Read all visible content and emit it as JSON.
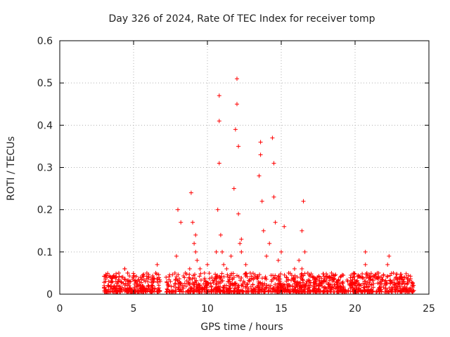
{
  "chart_data": {
    "type": "scatter",
    "title": "Day 326 of 2024, Rate Of TEC Index for receiver tomp",
    "xlabel": "GPS time / hours",
    "ylabel": "ROTI / TECUs",
    "xlim": [
      0,
      25
    ],
    "ylim": [
      0,
      0.6
    ],
    "xticks": [
      "0",
      "5",
      "10",
      "15",
      "20",
      "25"
    ],
    "yticks": [
      "0",
      "0.1",
      "0.2",
      "0.3",
      "0.4",
      "0.5",
      "0.6"
    ],
    "xtick_values": [
      0,
      5,
      10,
      15,
      20,
      25
    ],
    "ytick_values": [
      0,
      0.1,
      0.2,
      0.3,
      0.4,
      0.5,
      0.6
    ],
    "grid": true,
    "marker": "plus",
    "color": "#ff0000",
    "series": [
      {
        "x": [
          3.1,
          3.3,
          3.6,
          3.8,
          4.0,
          4.2,
          4.4,
          4.6,
          4.8,
          5.0,
          5.2,
          5.4,
          5.6,
          5.8,
          6.0,
          6.2,
          6.5,
          6.8,
          7.2,
          7.5,
          7.8,
          7.9,
          8.0,
          8.2,
          8.5,
          8.8,
          8.9,
          9.0,
          9.1,
          9.2,
          9.3,
          9.5,
          9.8,
          10.0,
          10.3,
          10.6,
          10.7,
          10.8,
          10.8,
          10.8,
          10.9,
          11.0,
          11.1,
          11.3,
          11.6,
          11.8,
          11.9,
          12.0,
          12.0,
          12.1,
          12.1,
          12.2,
          12.3,
          12.6,
          12.9,
          13.2,
          13.5,
          13.6,
          13.6,
          13.7,
          13.8,
          14.0,
          14.2,
          14.4,
          14.5,
          14.5,
          14.6,
          14.8,
          15.0,
          15.2,
          15.5,
          15.9,
          16.2,
          16.4,
          16.5,
          16.6,
          16.8,
          17.2,
          17.6,
          18.0,
          18.5,
          19.0,
          19.5,
          19.9,
          20.4,
          20.7,
          20.8,
          21.0,
          21.5,
          21.8,
          22.0,
          22.2,
          22.3,
          22.6,
          23.0,
          23.3,
          23.6,
          23.9,
          4.4,
          4.6,
          5.9,
          6.3,
          6.6,
          9.2,
          12.3,
          16.4,
          20.7,
          21.6
        ],
        "y": [
          0.03,
          0.02,
          0.04,
          0.03,
          0.05,
          0.04,
          0.06,
          0.05,
          0.03,
          0.04,
          0.02,
          0.03,
          0.02,
          0.03,
          0.02,
          0.02,
          0.05,
          0.03,
          0.04,
          0.03,
          0.05,
          0.09,
          0.2,
          0.17,
          0.05,
          0.06,
          0.24,
          0.17,
          0.12,
          0.1,
          0.08,
          0.06,
          0.05,
          0.07,
          0.04,
          0.1,
          0.2,
          0.31,
          0.41,
          0.47,
          0.14,
          0.1,
          0.07,
          0.06,
          0.09,
          0.25,
          0.39,
          0.51,
          0.45,
          0.35,
          0.19,
          0.12,
          0.1,
          0.07,
          0.05,
          0.04,
          0.28,
          0.36,
          0.33,
          0.22,
          0.15,
          0.09,
          0.12,
          0.37,
          0.31,
          0.23,
          0.17,
          0.08,
          0.1,
          0.16,
          0.05,
          0.06,
          0.08,
          0.15,
          0.22,
          0.1,
          0.05,
          0.04,
          0.03,
          0.04,
          0.03,
          0.04,
          0.03,
          0.05,
          0.04,
          0.1,
          0.05,
          0.04,
          0.05,
          0.04,
          0.03,
          0.07,
          0.09,
          0.05,
          0.04,
          0.03,
          0.03,
          0.02,
          0.06,
          0.05,
          0.05,
          0.04,
          0.07,
          0.14,
          0.13,
          0.06,
          0.07,
          0.05
        ]
      }
    ]
  }
}
